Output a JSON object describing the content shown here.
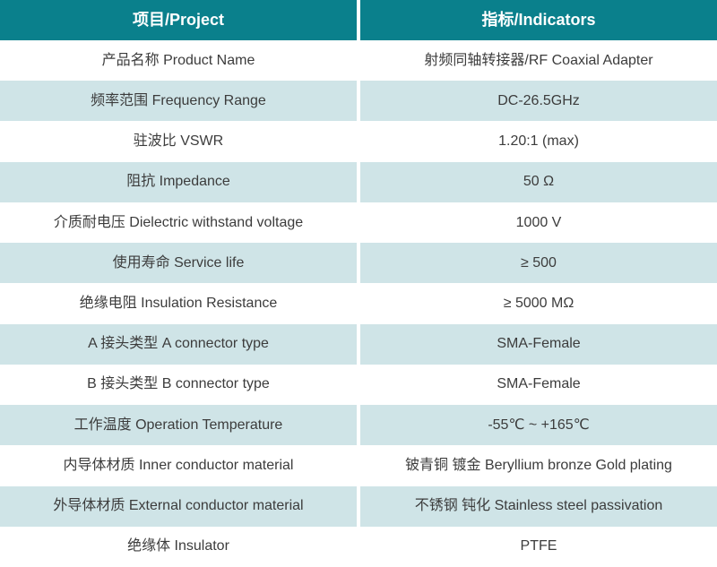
{
  "colors": {
    "header_bg": "#0A808C",
    "header_text": "#ffffff",
    "row_alt_bg": "#cfe4e7",
    "row_bg": "#ffffff",
    "body_text": "#3c3c3c",
    "divider": "#ffffff"
  },
  "table": {
    "header": {
      "project": "项目/Project",
      "indicator": "指标/Indicators"
    },
    "rows": [
      {
        "project": "产品名称 Product Name",
        "indicator": "射频同轴转接器/RF Coaxial Adapter"
      },
      {
        "project": "频率范围 Frequency Range",
        "indicator": "DC-26.5GHz"
      },
      {
        "project": "驻波比 VSWR",
        "indicator": "1.20:1 (max)"
      },
      {
        "project": "阻抗 Impedance",
        "indicator": "50 Ω"
      },
      {
        "project": "介质耐电压 Dielectric withstand voltage",
        "indicator": "1000 V"
      },
      {
        "project": "使用寿命 Service life",
        "indicator": "≥ 500"
      },
      {
        "project": "绝缘电阻 Insulation Resistance",
        "indicator": "≥ 5000 MΩ"
      },
      {
        "project": "A 接头类型 A connector type",
        "indicator": "SMA-Female"
      },
      {
        "project": "B 接头类型 B connector type",
        "indicator": "SMA-Female"
      },
      {
        "project": "工作温度 Operation Temperature",
        "indicator": "-55℃ ~ +165℃"
      },
      {
        "project": "内导体材质 Inner conductor material",
        "indicator": "铍青铜 镀金 Beryllium bronze Gold plating"
      },
      {
        "project": "外导体材质 External conductor material",
        "indicator": "不锈钢 钝化 Stainless steel passivation"
      },
      {
        "project": "绝缘体 Insulator",
        "indicator": "PTFE"
      }
    ]
  }
}
